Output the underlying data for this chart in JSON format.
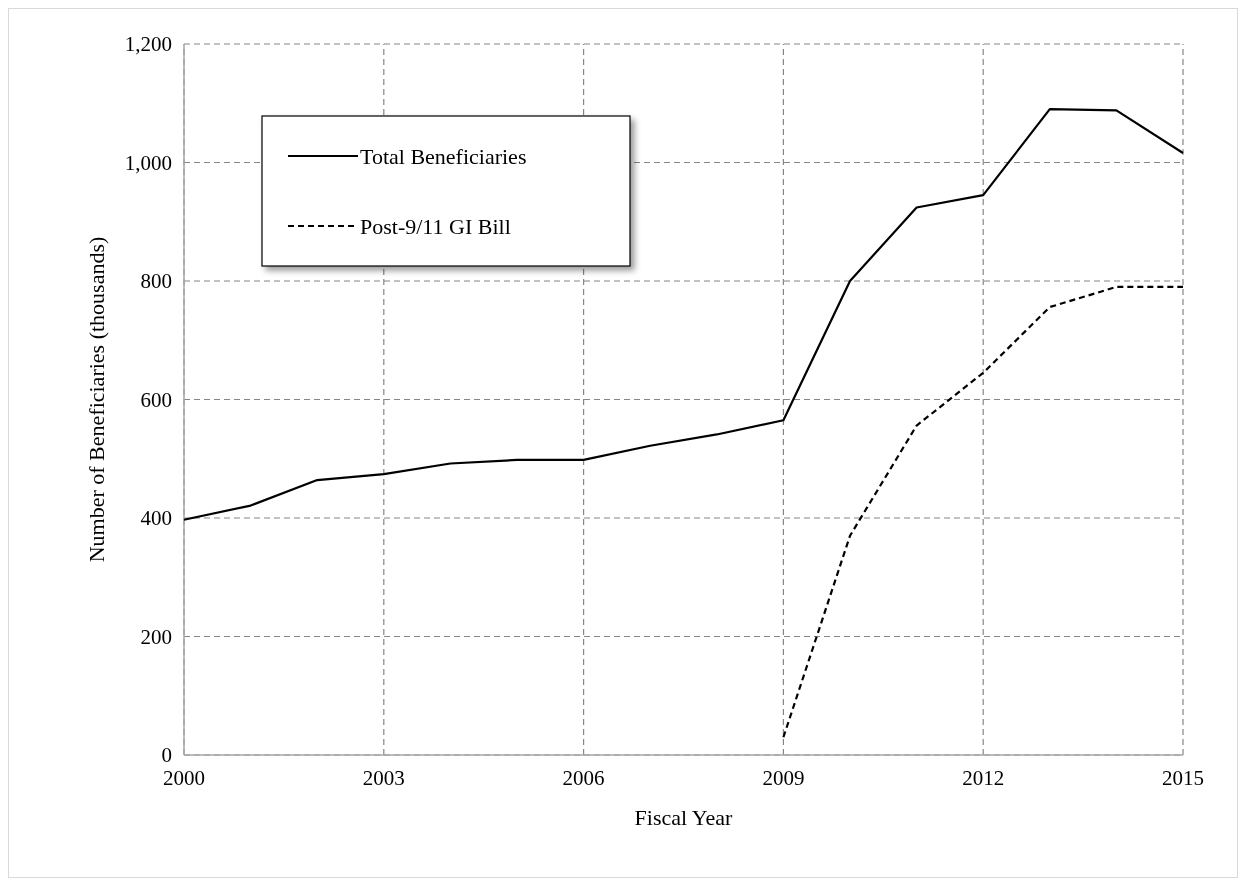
{
  "chart_data": {
    "type": "line",
    "xlabel": "Fiscal Year",
    "ylabel": "Number of Beneficiaries (thousands)",
    "x": [
      2000,
      2001,
      2002,
      2003,
      2004,
      2005,
      2006,
      2007,
      2008,
      2009,
      2010,
      2011,
      2012,
      2013,
      2014,
      2015
    ],
    "series": [
      {
        "name": "Total Beneficiaries",
        "color": "#000000",
        "line_style": "solid",
        "values": [
          397,
          421,
          464,
          474,
          492,
          498,
          498,
          522,
          541,
          565,
          800,
          924,
          945,
          1090,
          1088,
          1016
        ]
      },
      {
        "name": "Post-9/11 GI Bill",
        "color": "#000000",
        "line_style": "dashed",
        "values": [
          null,
          null,
          null,
          null,
          null,
          null,
          null,
          null,
          null,
          30,
          370,
          556,
          645,
          756,
          790,
          790
        ]
      }
    ],
    "xlim": [
      2000,
      2015
    ],
    "xticks": [
      2000,
      2003,
      2006,
      2009,
      2012,
      2015
    ],
    "ylim": [
      0,
      1200
    ],
    "yticks": [
      0,
      200,
      400,
      600,
      800,
      {
        "value": 1000,
        "label": "1,000"
      },
      {
        "value": 1200,
        "label": "1,200"
      }
    ],
    "grid": true,
    "legend": "top left",
    "marker": "none"
  }
}
